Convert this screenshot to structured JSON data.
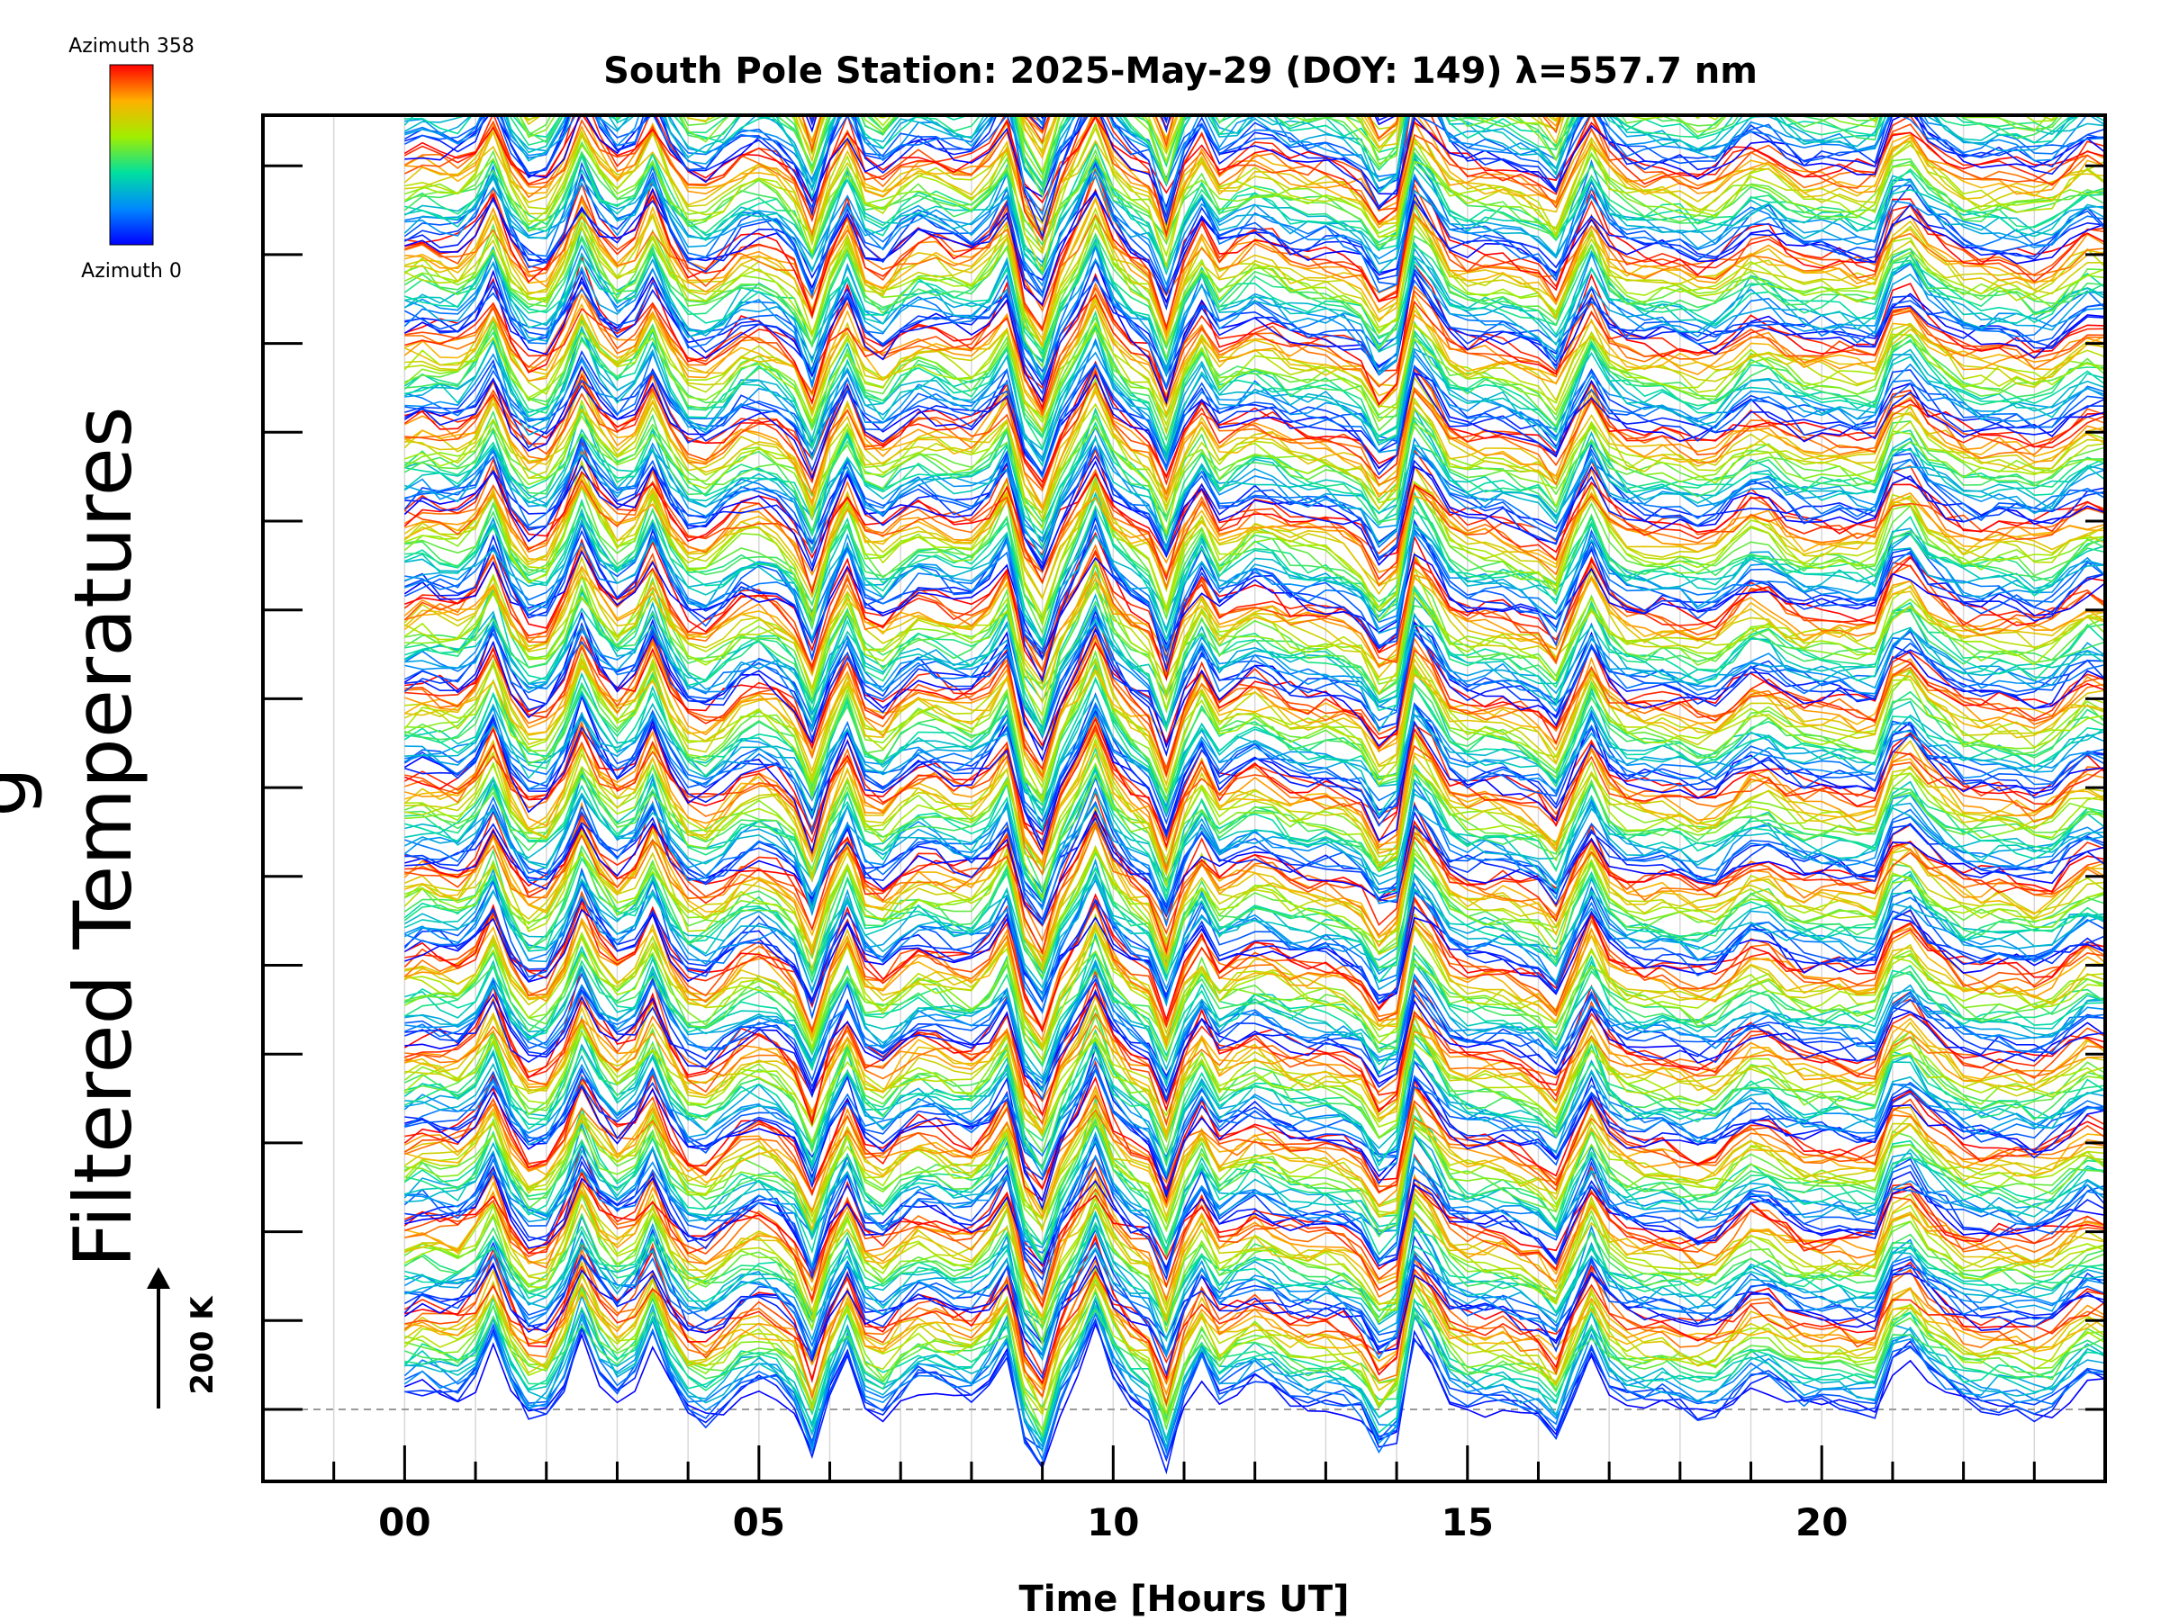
{
  "chart_data": {
    "type": "line",
    "title": "South Pole Station: 2025-May-29 (DOY: 149) λ=557.7 nm",
    "xlabel": "Time [Hours UT]",
    "ylabel": "Filtered Temperatures",
    "ylabel_partial": "g",
    "xlim": [
      -2,
      24
    ],
    "x_tick_values": [
      0,
      5,
      10,
      15,
      20
    ],
    "x_tick_labels": [
      "00",
      "05",
      "10",
      "15",
      "20"
    ],
    "x_minor_tick_step": 1,
    "y_offset_count": 15,
    "scale_bar_label": "200 K",
    "colorbar": {
      "top_label": "Azimuth 358",
      "bottom_label": "Azimuth 0",
      "min": 0,
      "max": 358,
      "colormap": "rainbow"
    },
    "azimuth_profiles_per_group": 24,
    "data_start_hour": 0,
    "data_end_hour": 24,
    "sample_step_hours": 0.25,
    "peak_events_hours": [
      1.25,
      2.5,
      3.5,
      6.25,
      8.5,
      9.75,
      11.2,
      14.3,
      16.6,
      21.1
    ],
    "dip_events_hours": [
      5.75,
      8.9,
      10.75,
      13.9,
      16.4
    ],
    "colors": {
      "axis": "#000000",
      "grid": "#d8d8d8",
      "baseline": "#9a9a9a",
      "background": "#ffffff"
    }
  }
}
